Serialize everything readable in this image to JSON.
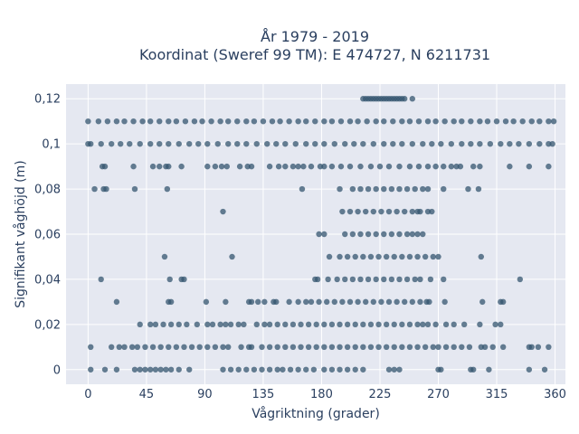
{
  "chart_data": {
    "type": "scatter",
    "title_line1": "År 1979 - 2019",
    "title_line2": "Koordinat (Sweref 99 TM): E 474727, N 6211731",
    "xlabel": "Vågriktning (grader)",
    "ylabel": "Signifikant våghöjd (m)",
    "xlim": [
      -17,
      368
    ],
    "ylim": [
      -0.0065,
      0.1265
    ],
    "xticks": [
      0,
      45,
      90,
      135,
      180,
      225,
      270,
      315,
      360
    ],
    "xtick_labels": [
      "0",
      "45",
      "90",
      "135",
      "180",
      "225",
      "270",
      "315",
      "360"
    ],
    "yticks": [
      0,
      0.02,
      0.04,
      0.06,
      0.08,
      0.1,
      0.12
    ],
    "ytick_labels": [
      "0",
      "0,02",
      "0,04",
      "0,06",
      "0,08",
      "0,1",
      "0,12"
    ],
    "grid": true,
    "marker_color": "#34566f",
    "plot_bg": "#e5e8f1",
    "series": [
      {
        "y": 0.12,
        "x": [
          212,
          214,
          216,
          218,
          220,
          222,
          224,
          226,
          228,
          230,
          232,
          234,
          236,
          238,
          240,
          242,
          244,
          250
        ]
      },
      {
        "y": 0.11,
        "x": [
          0,
          8,
          15,
          22,
          28,
          35,
          42,
          48,
          55,
          62,
          68,
          75,
          82,
          88,
          95,
          102,
          108,
          115,
          122,
          128,
          135,
          142,
          148,
          155,
          162,
          168,
          175,
          182,
          188,
          195,
          202,
          208,
          215,
          222,
          228,
          235,
          242,
          248,
          255,
          262,
          268,
          275,
          282,
          288,
          295,
          302,
          308,
          315,
          322,
          328,
          335,
          342,
          348,
          355,
          359
        ]
      },
      {
        "y": 0.1,
        "x": [
          0,
          2,
          10,
          18,
          25,
          32,
          40,
          48,
          55,
          62,
          70,
          78,
          85,
          92,
          100,
          108,
          115,
          122,
          130,
          138,
          145,
          152,
          160,
          168,
          175,
          182,
          190,
          198,
          205,
          212,
          220,
          228,
          235,
          242,
          250,
          258,
          265,
          272,
          280,
          288,
          295,
          302,
          310,
          318,
          325,
          332,
          340,
          348,
          355,
          358
        ]
      },
      {
        "y": 0.09,
        "x": [
          11,
          13,
          35,
          50,
          55,
          60,
          62,
          72,
          92,
          98,
          103,
          107,
          117,
          123,
          126,
          140,
          147,
          152,
          158,
          162,
          166,
          172,
          179,
          182,
          188,
          195,
          202,
          210,
          218,
          225,
          232,
          240,
          248,
          255,
          262,
          268,
          274,
          280,
          284,
          287,
          297,
          302,
          325,
          340,
          355
        ]
      },
      {
        "y": 0.08,
        "x": [
          5,
          12,
          14,
          36,
          61,
          165,
          194,
          204,
          210,
          216,
          222,
          228,
          234,
          240,
          246,
          252,
          258,
          262,
          274,
          293,
          301
        ]
      },
      {
        "y": 0.07,
        "x": [
          104,
          196,
          202,
          208,
          214,
          220,
          226,
          232,
          238,
          244,
          250,
          254,
          256,
          262,
          265
        ]
      },
      {
        "y": 0.06,
        "x": [
          178,
          182,
          198,
          204,
          210,
          216,
          222,
          228,
          234,
          240,
          246,
          250,
          254,
          258
        ]
      },
      {
        "y": 0.05,
        "x": [
          59,
          111,
          186,
          194,
          200,
          206,
          212,
          218,
          224,
          230,
          236,
          242,
          248,
          254,
          260,
          266,
          270,
          303
        ]
      },
      {
        "y": 0.04,
        "x": [
          10,
          63,
          72,
          74,
          175,
          177,
          185,
          192,
          198,
          204,
          210,
          216,
          222,
          228,
          234,
          240,
          246,
          252,
          256,
          264,
          274,
          333
        ]
      },
      {
        "y": 0.03,
        "x": [
          22,
          62,
          64,
          91,
          106,
          124,
          126,
          131,
          136,
          143,
          145,
          155,
          162,
          168,
          172,
          178,
          184,
          190,
          196,
          202,
          208,
          214,
          220,
          226,
          232,
          238,
          244,
          250,
          256,
          261,
          263,
          275,
          304,
          318,
          320
        ]
      },
      {
        "y": 0.02,
        "x": [
          40,
          48,
          52,
          58,
          64,
          70,
          76,
          84,
          92,
          96,
          102,
          106,
          110,
          116,
          120,
          130,
          136,
          140,
          146,
          152,
          158,
          164,
          170,
          176,
          182,
          188,
          194,
          200,
          206,
          212,
          218,
          224,
          230,
          236,
          242,
          248,
          254,
          258,
          262,
          268,
          276,
          282,
          290,
          302,
          314,
          318
        ]
      },
      {
        "y": 0.01,
        "x": [
          2,
          18,
          24,
          28,
          34,
          38,
          44,
          50,
          56,
          62,
          68,
          74,
          80,
          86,
          92,
          98,
          104,
          108,
          118,
          124,
          126,
          134,
          140,
          146,
          152,
          158,
          164,
          170,
          176,
          182,
          188,
          194,
          200,
          206,
          212,
          218,
          224,
          230,
          236,
          242,
          248,
          254,
          260,
          266,
          270,
          276,
          282,
          288,
          294,
          303,
          306,
          312,
          320,
          340,
          342,
          347,
          355
        ]
      },
      {
        "y": 0.0,
        "x": [
          2,
          13,
          22,
          36,
          40,
          44,
          48,
          52,
          56,
          60,
          64,
          70,
          78,
          104,
          110,
          116,
          122,
          128,
          134,
          140,
          146,
          150,
          156,
          162,
          168,
          174,
          182,
          188,
          194,
          200,
          206,
          212,
          232,
          236,
          240,
          270,
          272,
          295,
          297,
          309,
          340,
          352
        ]
      }
    ]
  }
}
